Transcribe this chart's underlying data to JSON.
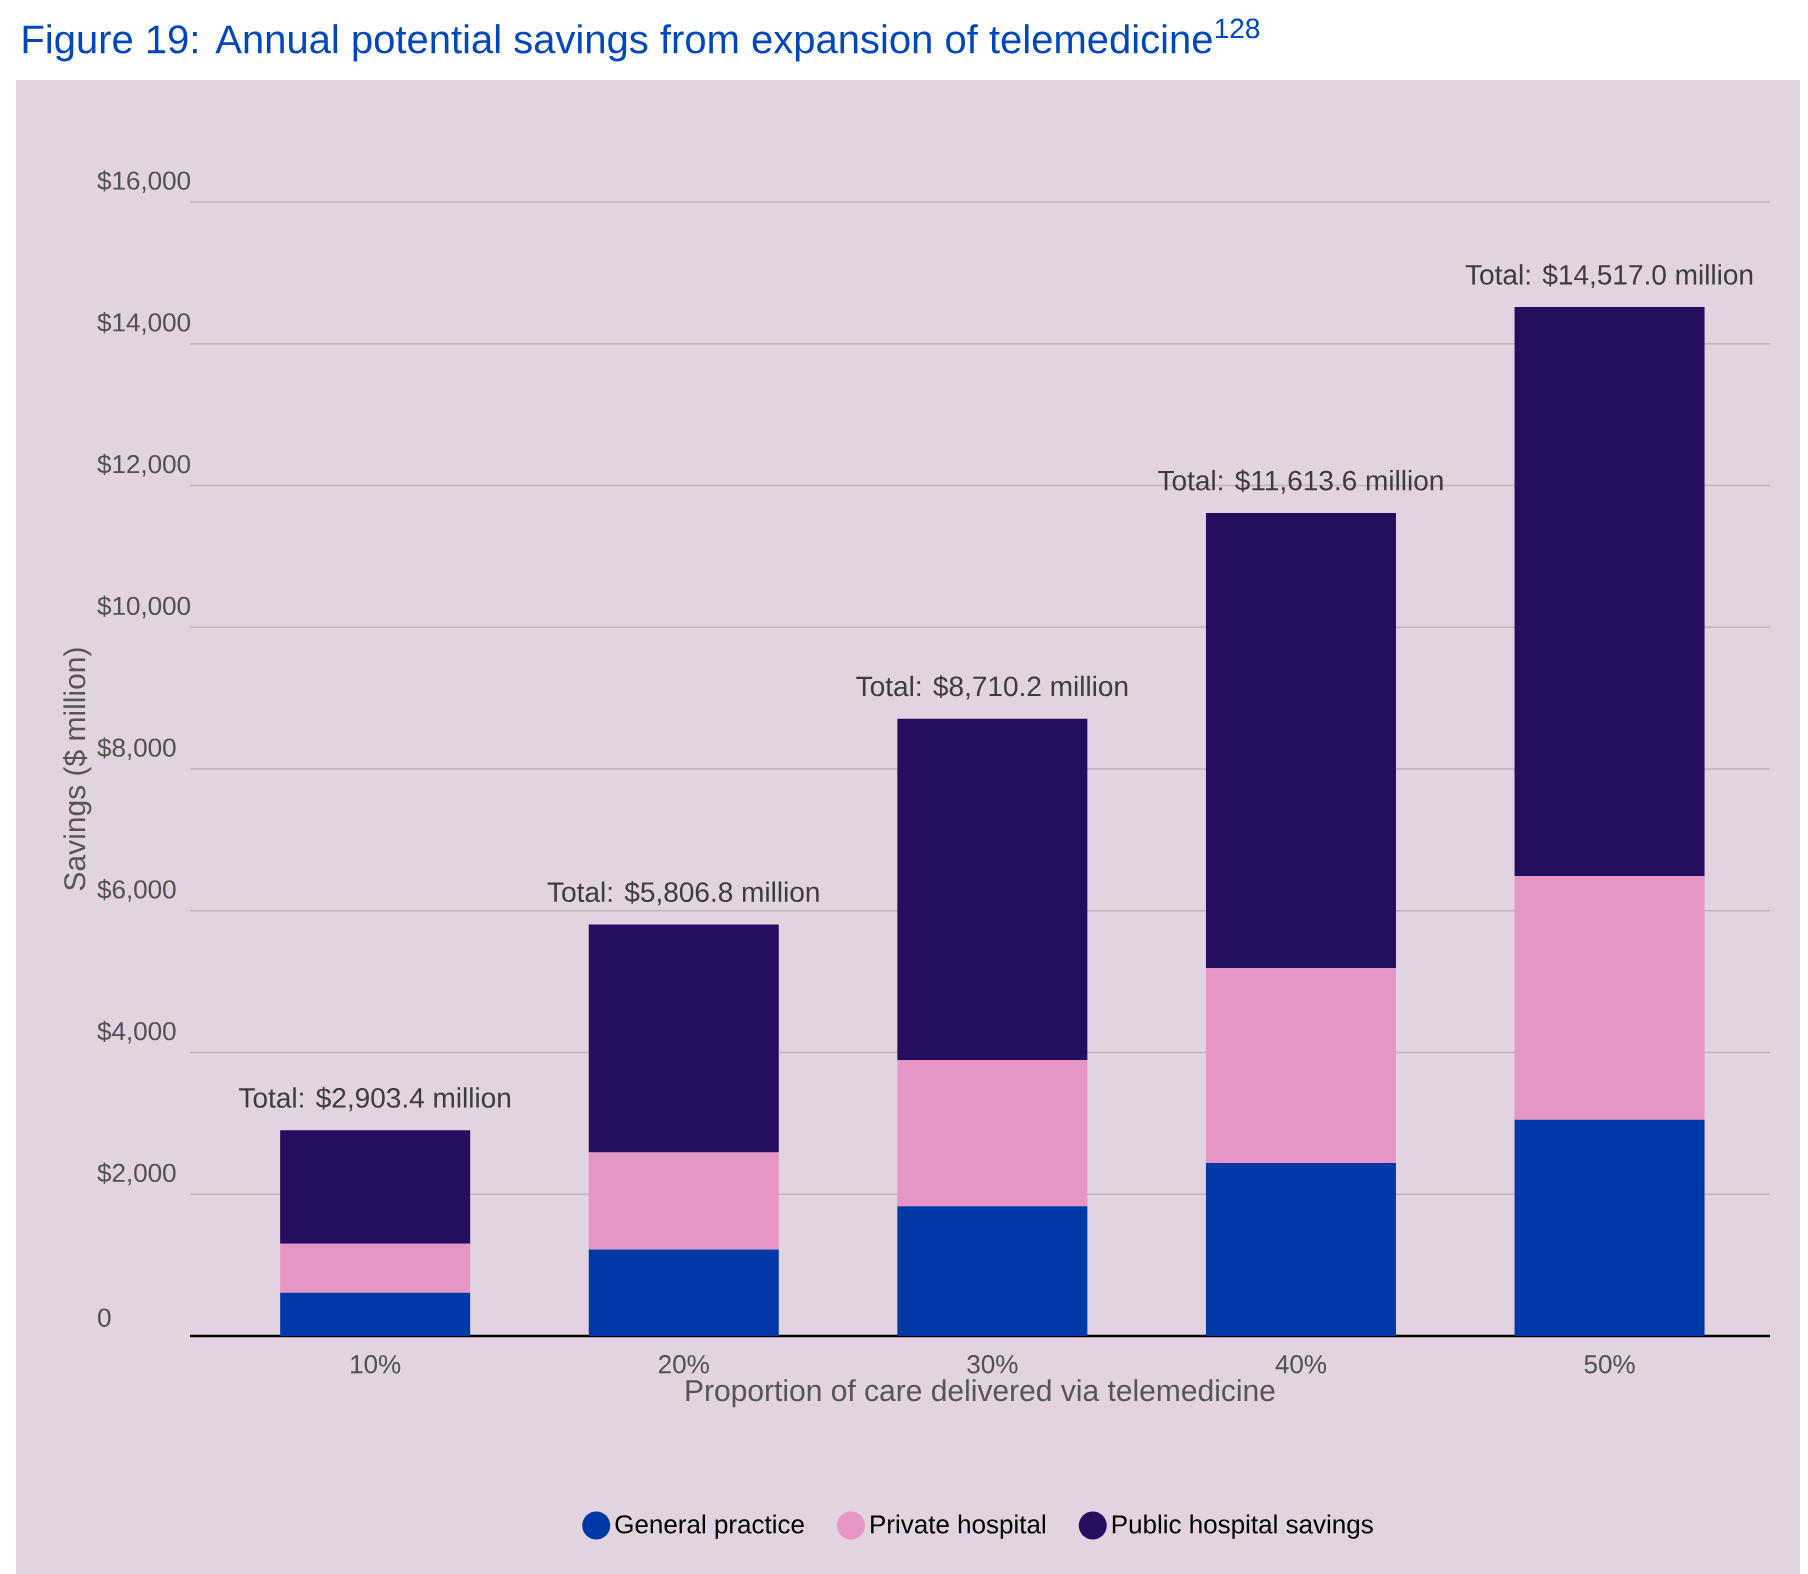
{
  "chart_data": {
    "type": "bar",
    "stacked": true,
    "title": "Figure 19: Annual potential savings from expansion of telemedicine$^{128}$",
    "xlabel": "Proportion of care delivered via telemedicine",
    "ylabel": "Savings ($ million)",
    "categories": [
      "10%",
      "20%",
      "30%",
      "40%",
      "50%"
    ],
    "series": [
      {
        "name": "General practice",
        "color": "#0038a8",
        "values": [
          610,
          1220,
          1830,
          2440,
          3050
        ]
      },
      {
        "name": "Private hospital",
        "color": "#e695c4",
        "values": [
          690,
          1370,
          2060,
          2750,
          3440
        ]
      },
      {
        "name": "Public hospital savings",
        "color": "#250d60",
        "values": [
          1603.4,
          3216.8,
          4820.2,
          6423.6,
          8027.0
        ]
      }
    ],
    "totals": [
      "Total: $2,903.4 million",
      "Total: $5,806.8 million",
      "Total: $8,710.2 million",
      "Total: $11,613.6 million",
      "Total: $14,517.0 million"
    ],
    "ylim": [
      0,
      16000
    ],
    "yticks": [
      0,
      {
        "value": 2000,
        "label": "$2,000"
      },
      {
        "value": 4000,
        "label": "$4,000"
      },
      {
        "value": 6000,
        "label": "$6,000"
      },
      {
        "value": 8000,
        "label": "$8,000"
      },
      {
        "value": 10000,
        "label": "$10,000"
      },
      {
        "value": 12000,
        "label": "$12,000"
      },
      {
        "value": 14000,
        "label": "$14,000"
      },
      {
        "value": 16000,
        "label": "$16,000"
      }
    ],
    "grid": "y",
    "legend": "bottom"
  }
}
